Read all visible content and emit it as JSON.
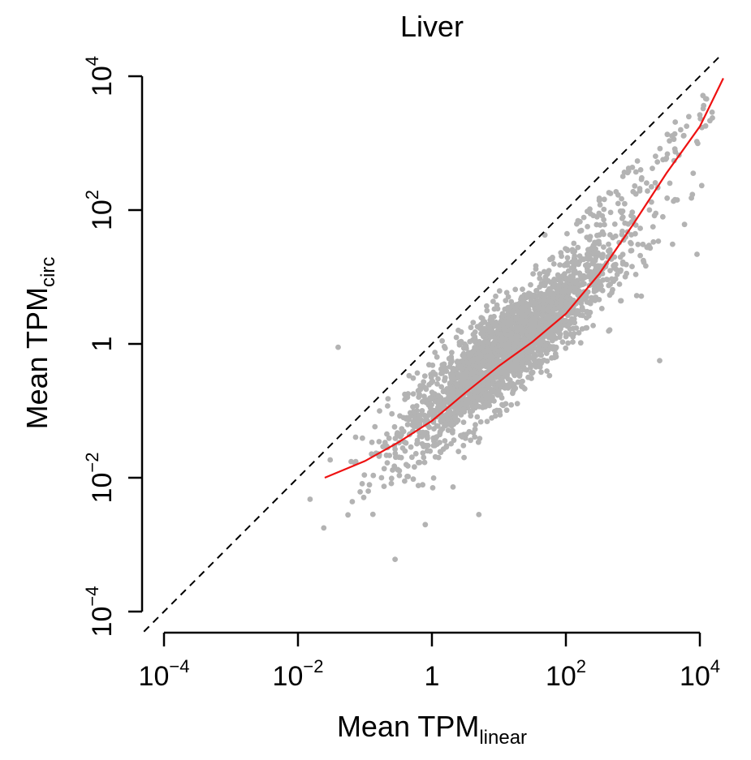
{
  "chart_data": {
    "type": "scatter",
    "title": "Liver",
    "xlabel": {
      "main": "Mean TPM",
      "subscript": "linear"
    },
    "ylabel": {
      "main": "Mean TPM",
      "subscript": "circ"
    },
    "scale": "log10",
    "xlim_log10": [
      -4,
      4
    ],
    "ylim_log10": [
      -4,
      4
    ],
    "x_ticks": [
      {
        "log10": -4,
        "base": "10",
        "exp": "−4"
      },
      {
        "log10": -2,
        "base": "10",
        "exp": "−2"
      },
      {
        "log10": 0,
        "base": "1",
        "exp": ""
      },
      {
        "log10": 2,
        "base": "10",
        "exp": "2"
      },
      {
        "log10": 4,
        "base": "10",
        "exp": "4"
      }
    ],
    "y_ticks": [
      {
        "log10": -4,
        "base": "10",
        "exp": "−4"
      },
      {
        "log10": -2,
        "base": "10",
        "exp": "−2"
      },
      {
        "log10": 0,
        "base": "1",
        "exp": ""
      },
      {
        "log10": 2,
        "base": "10",
        "exp": "2"
      },
      {
        "log10": 4,
        "base": "10",
        "exp": "4"
      }
    ],
    "identity_line": {
      "style": "dashed",
      "color": "#000000",
      "slope": 1,
      "intercept": 0
    },
    "fit_line": {
      "color": "#ee1111",
      "points_log10": [
        [
          -1.6,
          -2.0
        ],
        [
          -1.0,
          -1.75
        ],
        [
          -0.5,
          -1.47
        ],
        [
          0.0,
          -1.15
        ],
        [
          0.5,
          -0.73
        ],
        [
          1.0,
          -0.33
        ],
        [
          1.5,
          0.03
        ],
        [
          2.0,
          0.45
        ],
        [
          2.5,
          1.05
        ],
        [
          3.0,
          1.78
        ],
        [
          3.5,
          2.55
        ],
        [
          4.0,
          3.25
        ],
        [
          4.35,
          3.97
        ]
      ]
    },
    "scatter_color": "#b3b3b3",
    "scatter_summary": {
      "n_points": 2400,
      "center_log10": [
        1.1,
        -0.1
      ],
      "note": "dense gray point cloud; individual values estimated"
    },
    "scatter_outliers_log10": [
      [
        -1.4,
        -0.05
      ],
      [
        -0.55,
        -3.22
      ],
      [
        3.4,
        -0.25
      ],
      [
        3.9,
        2.55
      ],
      [
        3.3,
        1.75
      ],
      [
        -0.1,
        -2.7
      ],
      [
        0.7,
        -2.55
      ],
      [
        -0.95,
        -2.2
      ]
    ]
  }
}
